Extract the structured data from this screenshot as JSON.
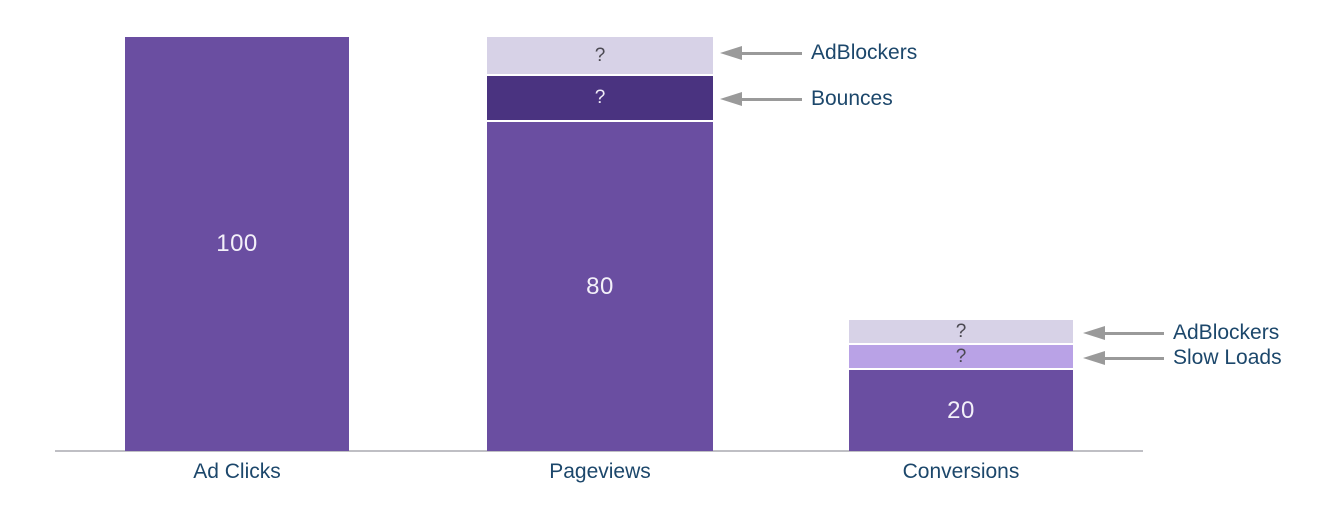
{
  "chart_data": {
    "type": "bar",
    "subtype": "stacked_funnel",
    "title": "",
    "categories": [
      "Ad Clicks",
      "Pageviews",
      "Conversions"
    ],
    "ylim": [
      0,
      100
    ],
    "grid": false,
    "legend": false,
    "bars": [
      {
        "category": "Ad Clicks",
        "total": 100,
        "segments": [
          {
            "name": "measured",
            "label": "100",
            "value": 100,
            "color": "#6a4ea1",
            "text_color": "#f3f0f9"
          }
        ]
      },
      {
        "category": "Pageviews",
        "total": 100,
        "segments": [
          {
            "name": "measured",
            "label": "80",
            "value": 80,
            "color": "#6a4ea1",
            "text_color": "#f3f0f9"
          },
          {
            "name": "bounces",
            "label": "?",
            "value": null,
            "color": "#4a3380",
            "text_color": "#f1eef7"
          },
          {
            "name": "adblockers",
            "label": "?",
            "value": null,
            "color": "#d7d2e7",
            "text_color": "#4b4952"
          }
        ]
      },
      {
        "category": "Conversions",
        "total": null,
        "segments": [
          {
            "name": "measured",
            "label": "20",
            "value": 20,
            "color": "#6a4ea1",
            "text_color": "#f3f0f9"
          },
          {
            "name": "slow_loads",
            "label": "?",
            "value": null,
            "color": "#b9a2e6",
            "text_color": "#4b4952"
          },
          {
            "name": "adblockers",
            "label": "?",
            "value": null,
            "color": "#d7d2e7",
            "text_color": "#4b4952"
          }
        ]
      }
    ],
    "annotations": [
      {
        "label": "AdBlockers",
        "points_to": "Pageviews adblockers segment"
      },
      {
        "label": "Bounces",
        "points_to": "Pageviews bounces segment"
      },
      {
        "label": "AdBlockers",
        "points_to": "Conversions adblockers segment"
      },
      {
        "label": "Slow Loads",
        "points_to": "Conversions slow_loads segment"
      }
    ]
  },
  "colors": {
    "bar_main": "#6a4ea1",
    "bar_dark": "#4a3380",
    "bar_pale_lavender": "#d7d2e7",
    "bar_light_purple": "#b9a2e6",
    "annotation_text": "#1c476b",
    "arrow": "#9a9a9a",
    "axis_line": "#bfbfc4",
    "value_text": "#f3f0f9",
    "question_mark_dark": "#4b4952"
  }
}
